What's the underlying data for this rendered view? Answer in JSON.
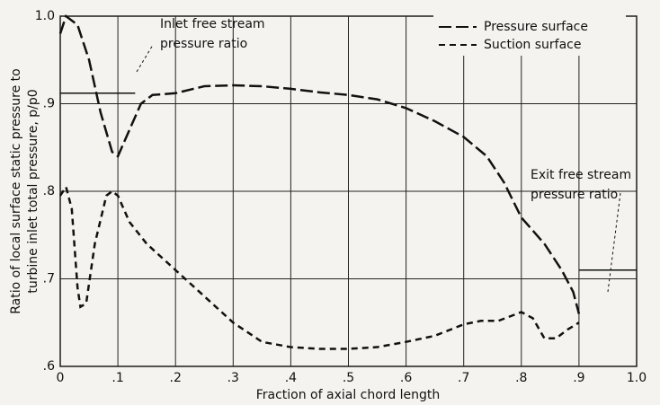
{
  "chart_data": {
    "type": "line",
    "xlabel": "Fraction of axial chord length",
    "ylabel": [
      "Ratio of local surface static pressure to",
      "turbine inlet total pressure, p/p0"
    ],
    "xlim": [
      0,
      1
    ],
    "ylim": [
      0.6,
      1
    ],
    "xticks": [
      0,
      {
        "value": 0.1,
        "label": ".1"
      },
      {
        "value": 0.2,
        "label": ".2"
      },
      {
        "value": 0.3,
        "label": ".3"
      },
      {
        "value": 0.4,
        "label": ".4"
      },
      {
        "value": 0.5,
        "label": ".5"
      },
      {
        "value": 0.6,
        "label": ".6"
      },
      {
        "value": 0.7,
        "label": ".7"
      },
      {
        "value": 0.8,
        "label": ".8"
      },
      {
        "value": 0.9,
        "label": ".9"
      },
      {
        "value": 1,
        "label": "1.0"
      }
    ],
    "yticks": [
      {
        "value": 0.6,
        "label": ".6"
      },
      {
        "value": 0.7,
        "label": ".7"
      },
      {
        "value": 0.8,
        "label": ".8"
      },
      {
        "value": 0.9,
        "label": ".9"
      },
      {
        "value": 1,
        "label": "1.0"
      }
    ],
    "grid": true,
    "legend": "upper right",
    "series": [
      {
        "name": "Pressure surface",
        "color": "#111111",
        "dash": "14,5",
        "x": [
          0,
          0.01,
          0.03,
          0.05,
          0.07,
          0.09,
          0.1,
          0.12,
          0.14,
          0.16,
          0.2,
          0.25,
          0.3,
          0.35,
          0.4,
          0.45,
          0.5,
          0.55,
          0.6,
          0.65,
          0.7,
          0.74,
          0.77,
          0.8,
          0.84,
          0.87,
          0.89,
          0.9
        ],
        "values": [
          0.98,
          1.0,
          0.99,
          0.95,
          0.89,
          0.845,
          0.84,
          0.87,
          0.9,
          0.91,
          0.912,
          0.92,
          0.921,
          0.92,
          0.917,
          0.913,
          0.91,
          0.905,
          0.895,
          0.88,
          0.862,
          0.84,
          0.81,
          0.77,
          0.74,
          0.71,
          0.685,
          0.66
        ]
      },
      {
        "name": "Suction surface",
        "color": "#111111",
        "dash": "7,5",
        "x": [
          0,
          0.01,
          0.02,
          0.03,
          0.035,
          0.045,
          0.06,
          0.08,
          0.09,
          0.1,
          0.12,
          0.15,
          0.2,
          0.25,
          0.3,
          0.35,
          0.4,
          0.45,
          0.5,
          0.55,
          0.6,
          0.65,
          0.7,
          0.73,
          0.76,
          0.8,
          0.82,
          0.84,
          0.86,
          0.88,
          0.9
        ],
        "values": [
          0.795,
          0.805,
          0.78,
          0.69,
          0.668,
          0.672,
          0.74,
          0.795,
          0.8,
          0.795,
          0.765,
          0.74,
          0.71,
          0.68,
          0.65,
          0.628,
          0.622,
          0.62,
          0.62,
          0.622,
          0.628,
          0.635,
          0.648,
          0.652,
          0.652,
          0.662,
          0.655,
          0.632,
          0.632,
          0.642,
          0.65
        ]
      }
    ],
    "reference_lines": [
      {
        "label": [
          "Inlet free stream",
          "pressure ratio"
        ],
        "value": 0.912,
        "x": [
          0,
          0.13
        ]
      },
      {
        "label": [
          "Exit free stream",
          "pressure ratio"
        ],
        "value": 0.71,
        "x": [
          0.9,
          1
        ]
      }
    ]
  }
}
